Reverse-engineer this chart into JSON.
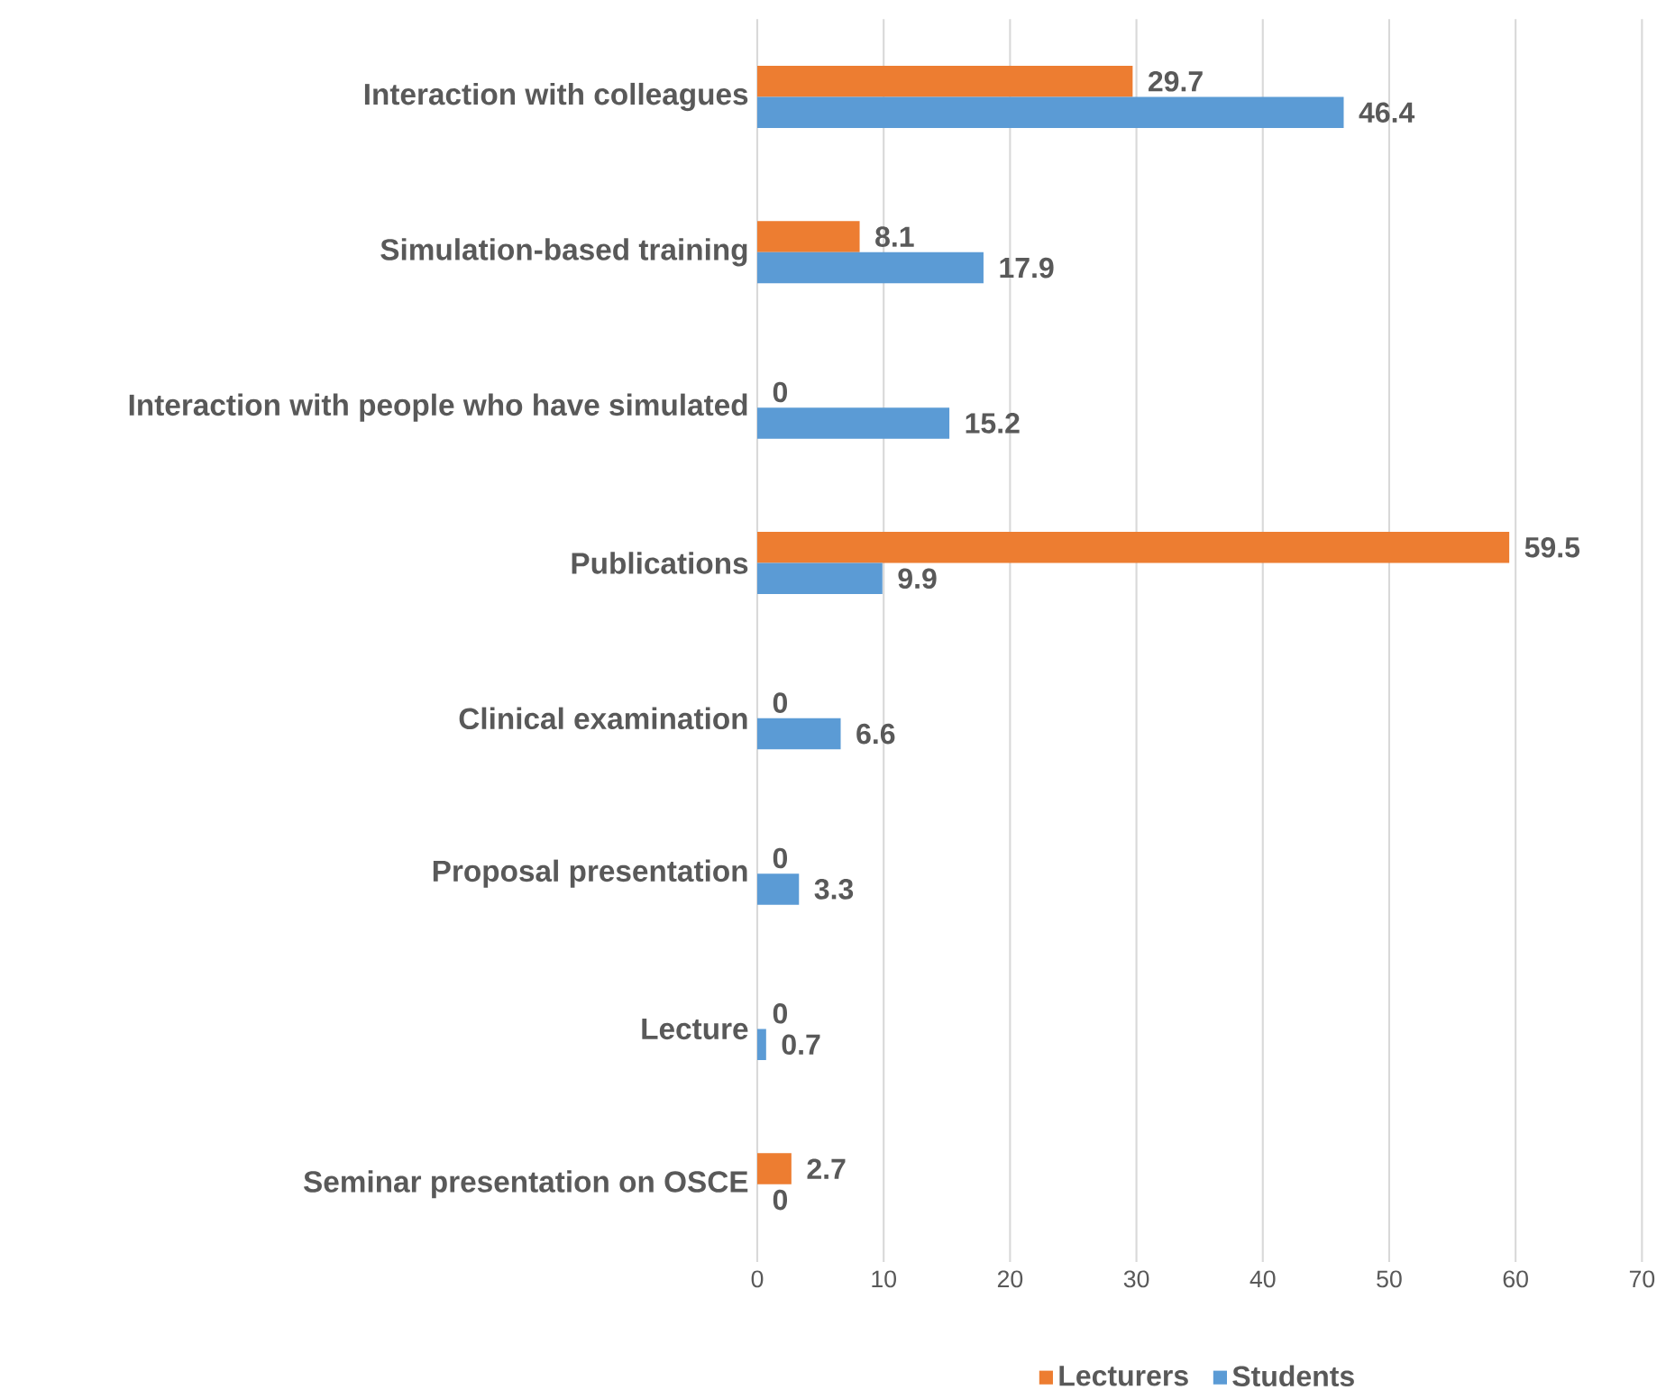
{
  "chart_data": {
    "type": "bar",
    "orientation": "horizontal",
    "categories": [
      "Interaction with colleagues",
      "Simulation-based training",
      "Interaction with people who have simulated",
      "Publications",
      "Clinical examination",
      "Proposal presentation",
      "Lecture",
      "Seminar presentation on OSCE"
    ],
    "series": [
      {
        "name": "Lecturers",
        "color": "#ed7d31",
        "values": [
          29.7,
          8.1,
          0,
          59.5,
          0,
          0,
          0,
          2.7
        ]
      },
      {
        "name": "Students",
        "color": "#5b9bd5",
        "values": [
          46.4,
          17.9,
          15.2,
          9.9,
          6.6,
          3.3,
          0.7,
          0
        ]
      }
    ],
    "xlim": [
      0,
      70
    ],
    "xticks": [
      0,
      10,
      20,
      30,
      40,
      50,
      60,
      70
    ],
    "grid": "x",
    "legend": "bottom",
    "data_labels": true
  }
}
